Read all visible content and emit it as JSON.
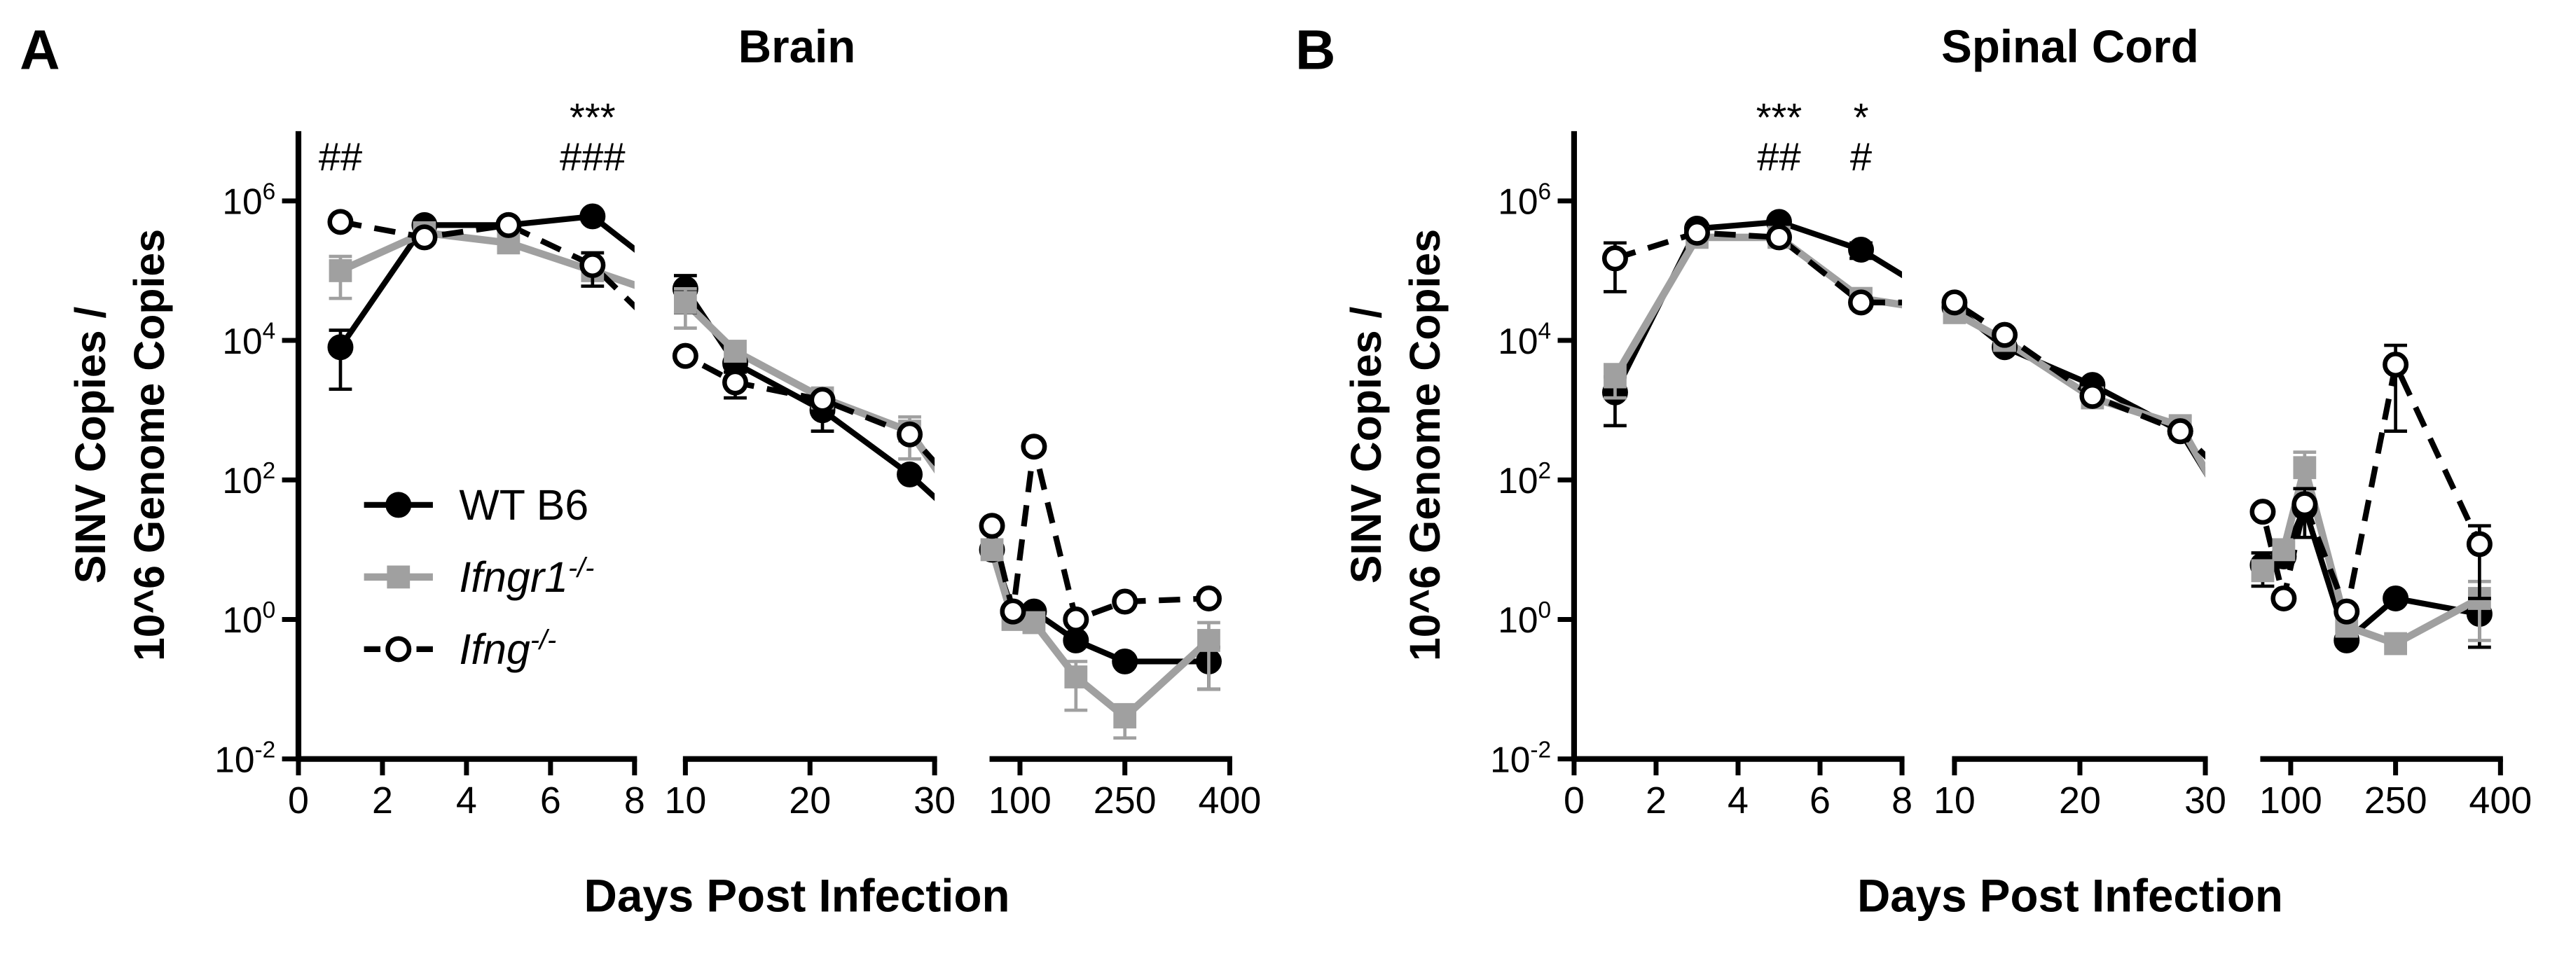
{
  "chart_data": [
    {
      "type": "line",
      "panel": "A",
      "title": "Brain",
      "ylabel": [
        "SINV Copies /",
        "10^6 Genome Copies"
      ],
      "xlabel": "Days Post Infection",
      "yscale": "log",
      "ylim": [
        0.01,
        10000000
      ],
      "yticks": [
        {
          "value": 0.01,
          "label": "10^-2"
        },
        {
          "value": 1,
          "label": "10^0"
        },
        {
          "value": 100,
          "label": "10^2"
        },
        {
          "value": 10000,
          "label": "10^4"
        },
        {
          "value": 1000000,
          "label": "10^6"
        }
      ],
      "x_segments": [
        {
          "xlim": [
            0,
            8
          ],
          "xticks": [
            0,
            2,
            4,
            6,
            8
          ]
        },
        {
          "xlim": [
            10,
            30
          ],
          "xticks": [
            10,
            20,
            30
          ]
        },
        {
          "xlim": [
            60,
            400
          ],
          "xticks": [
            100,
            250,
            400
          ]
        }
      ],
      "x": [
        1,
        3,
        5,
        7,
        10,
        14,
        21,
        28,
        60,
        90,
        120,
        180,
        250,
        370
      ],
      "legend": "lower left",
      "series": [
        {
          "name": "WT B6",
          "color": "#000000",
          "marker": "circle",
          "filled": true,
          "dashed": false,
          "italic": false,
          "values": [
            8000,
            450000,
            450000,
            600000,
            55000,
            4700,
            1000,
            120,
            10,
            1.3,
            1.3,
            0.5,
            0.25,
            0.25
          ],
          "errors": [
            6000,
            null,
            null,
            null,
            30000,
            null,
            500,
            null,
            null,
            null,
            null,
            null,
            null,
            0.15
          ]
        },
        {
          "name": "Ifngr1^-/-",
          "color": "#a0a0a0",
          "marker": "square",
          "filled": true,
          "dashed": false,
          "italic": true,
          "values": [
            100000,
            350000,
            250000,
            100000,
            35000,
            7000,
            1500,
            500,
            10,
            1.0,
            0.9,
            0.15,
            0.04,
            0.5
          ],
          "errors": [
            60000,
            null,
            null,
            null,
            20000,
            null,
            null,
            300,
            null,
            null,
            null,
            0.1,
            0.02,
            0.4
          ]
        },
        {
          "name": "Ifng^-/-",
          "color": "#000000",
          "marker": "circle",
          "filled": false,
          "dashed": true,
          "italic": true,
          "values": [
            500000,
            300000,
            450000,
            120000,
            6000,
            2500,
            1400,
            450,
            22,
            1.3,
            300,
            1.0,
            1.8,
            2.0
          ],
          "errors": [
            null,
            null,
            null,
            60000,
            null,
            1000,
            null,
            null,
            null,
            null,
            null,
            null,
            null,
            null
          ]
        }
      ],
      "annotations": [
        {
          "x": 1,
          "lines": [
            "##"
          ]
        },
        {
          "x": 7,
          "lines": [
            "***",
            "###"
          ]
        }
      ]
    },
    {
      "type": "line",
      "panel": "B",
      "title": "Spinal Cord",
      "ylabel": [
        "SINV Copies /",
        "10^6 Genome Copies"
      ],
      "xlabel": "Days Post Infection",
      "yscale": "log",
      "ylim": [
        0.01,
        10000000
      ],
      "yticks": [
        {
          "value": 0.01,
          "label": "10^-2"
        },
        {
          "value": 1,
          "label": "10^0"
        },
        {
          "value": 100,
          "label": "10^2"
        },
        {
          "value": 10000,
          "label": "10^4"
        },
        {
          "value": 1000000,
          "label": "10^6"
        }
      ],
      "x_segments": [
        {
          "xlim": [
            0,
            8
          ],
          "xticks": [
            0,
            2,
            4,
            6,
            8
          ]
        },
        {
          "xlim": [
            10,
            30
          ],
          "xticks": [
            10,
            20,
            30
          ]
        },
        {
          "xlim": [
            60,
            400
          ],
          "xticks": [
            100,
            250,
            400
          ]
        }
      ],
      "x": [
        1,
        3,
        5,
        7,
        10,
        14,
        21,
        28,
        60,
        90,
        120,
        180,
        250,
        370
      ],
      "series": [
        {
          "color": "#000000",
          "marker": "circle",
          "filled": true,
          "dashed": false,
          "values": [
            1800,
            400000,
            500000,
            200000,
            30000,
            8000,
            2300,
            500,
            6,
            8,
            40,
            0.5,
            2,
            1.2
          ],
          "errors": [
            1200,
            null,
            null,
            50000,
            null,
            null,
            null,
            null,
            3,
            null,
            null,
            null,
            null,
            0.8
          ]
        },
        {
          "color": "#a0a0a0",
          "marker": "square",
          "filled": true,
          "dashed": false,
          "values": [
            3000,
            300000,
            300000,
            40000,
            25000,
            10000,
            1500,
            600,
            5,
            10,
            150,
            0.8,
            0.45,
            2
          ],
          "errors": [
            1500,
            null,
            null,
            null,
            null,
            null,
            null,
            200,
            null,
            null,
            100,
            null,
            null,
            1.5
          ]
        },
        {
          "color": "#000000",
          "marker": "circle",
          "filled": false,
          "dashed": true,
          "values": [
            150000,
            350000,
            300000,
            35000,
            35000,
            12000,
            1600,
            500,
            35,
            2,
            45,
            1.3,
            4500,
            12
          ],
          "errors": [
            100000,
            null,
            null,
            null,
            null,
            null,
            null,
            null,
            null,
            null,
            30,
            null,
            4000,
            10
          ]
        }
      ],
      "annotations": [
        {
          "x": 5,
          "lines": [
            "***",
            "##"
          ]
        },
        {
          "x": 7,
          "lines": [
            "*",
            "#"
          ]
        }
      ]
    }
  ]
}
